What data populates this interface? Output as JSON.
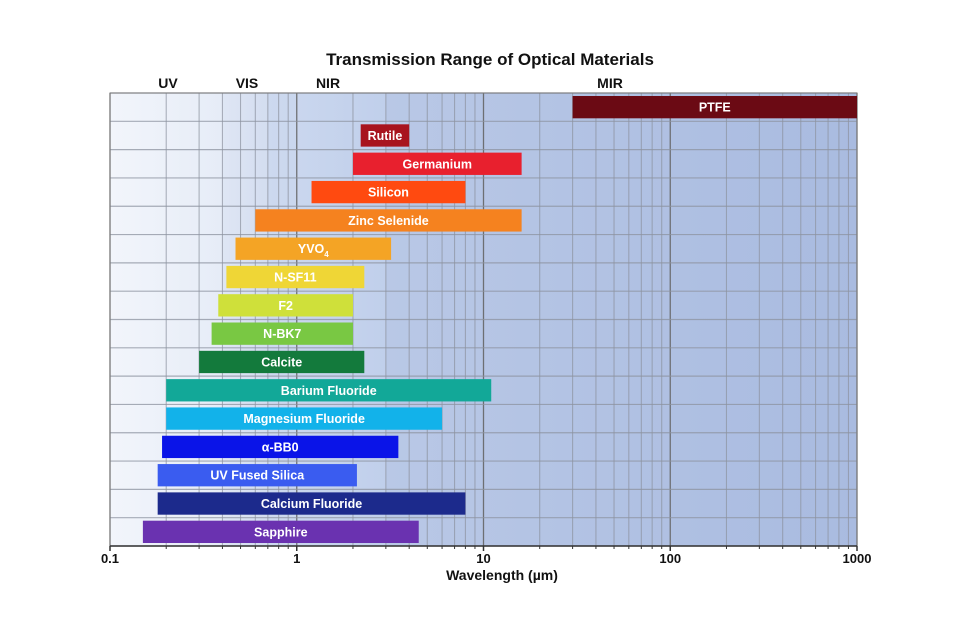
{
  "chart_data": {
    "type": "bar",
    "orientation": "horizontal-range",
    "title": "Transmission Range of Optical Materials",
    "xlabel": "Wavelength (µm)",
    "x_scale": "log",
    "xlim": [
      0.1,
      1000
    ],
    "x_ticks": [
      "0.1",
      "1",
      "10",
      "100",
      "1000"
    ],
    "grid": true,
    "regions": [
      {
        "label": "UV",
        "range": [
          0.1,
          0.4
        ]
      },
      {
        "label": "VIS",
        "range": [
          0.4,
          0.7
        ]
      },
      {
        "label": "NIR",
        "range": [
          0.7,
          3
        ]
      },
      {
        "label": "MIR",
        "range": [
          3,
          1000
        ]
      }
    ],
    "materials": [
      {
        "name": "PTFE",
        "min": 30,
        "max": 1000,
        "color": "#6b0a14"
      },
      {
        "name": "Rutile",
        "min": 2.2,
        "max": 4,
        "color": "#a8141e"
      },
      {
        "name": "Germanium",
        "min": 2,
        "max": 16,
        "color": "#e8202e"
      },
      {
        "name": "Silicon",
        "min": 1.2,
        "max": 8,
        "color": "#ff4a10"
      },
      {
        "name": "Zinc Selenide",
        "min": 0.6,
        "max": 16,
        "color": "#f5821f"
      },
      {
        "name": "YVO",
        "sub": "4",
        "min": 0.47,
        "max": 3.2,
        "color": "#f4a425"
      },
      {
        "name": "N-SF11",
        "min": 0.42,
        "max": 2.3,
        "color": "#efd636"
      },
      {
        "name": "F2",
        "min": 0.38,
        "max": 2,
        "color": "#cfe03a"
      },
      {
        "name": "N-BK7",
        "min": 0.35,
        "max": 2,
        "color": "#79c843"
      },
      {
        "name": "Calcite",
        "min": 0.3,
        "max": 2.3,
        "color": "#137a3c"
      },
      {
        "name": "Barium Fluoride",
        "min": 0.2,
        "max": 11,
        "color": "#12a898"
      },
      {
        "name": "Magnesium Fluoride",
        "min": 0.2,
        "max": 6,
        "color": "#12b2ea"
      },
      {
        "name": "α-BB0",
        "min": 0.19,
        "max": 3.5,
        "color": "#0a14e8"
      },
      {
        "name": "UV Fused Silica",
        "min": 0.18,
        "max": 2.1,
        "color": "#3a5cf0"
      },
      {
        "name": "Calcium Fluoride",
        "min": 0.18,
        "max": 8,
        "color": "#1c2a8c"
      },
      {
        "name": "Sapphire",
        "min": 0.15,
        "max": 4.5,
        "color": "#6a32b0"
      }
    ]
  }
}
